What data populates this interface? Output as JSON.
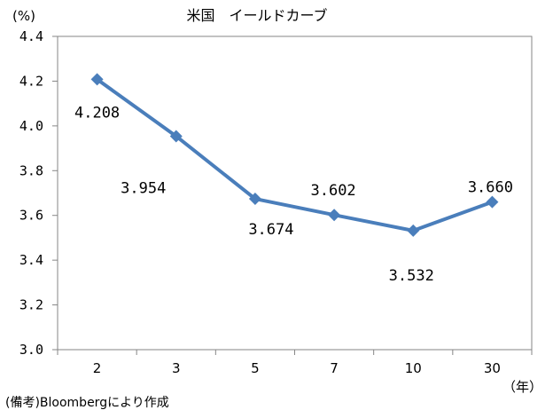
{
  "title": "米国　イールドカーブ",
  "y_unit": "(%)",
  "x_unit": "（年）",
  "source": "(備考)Bloombergにより作成",
  "colors": {
    "series": "#4a7ebb",
    "axis": "#868686",
    "text": "#000000"
  },
  "chart_data": {
    "type": "line",
    "title": "米国　イールドカーブ",
    "categories": [
      "2",
      "3",
      "5",
      "7",
      "10",
      "30"
    ],
    "series": [
      {
        "values": [
          4.208,
          3.954,
          3.674,
          3.602,
          3.532,
          3.66
        ],
        "labels": [
          "4.208",
          "3.954",
          "3.674",
          "3.602",
          "3.532",
          "3.660"
        ]
      }
    ],
    "ylim": [
      3.0,
      4.4
    ],
    "yticks": [
      "3.0",
      "3.2",
      "3.4",
      "3.6",
      "3.8",
      "4.0",
      "4.2",
      "4.4"
    ],
    "grid": false,
    "marker": "diamond",
    "legend": "none"
  }
}
